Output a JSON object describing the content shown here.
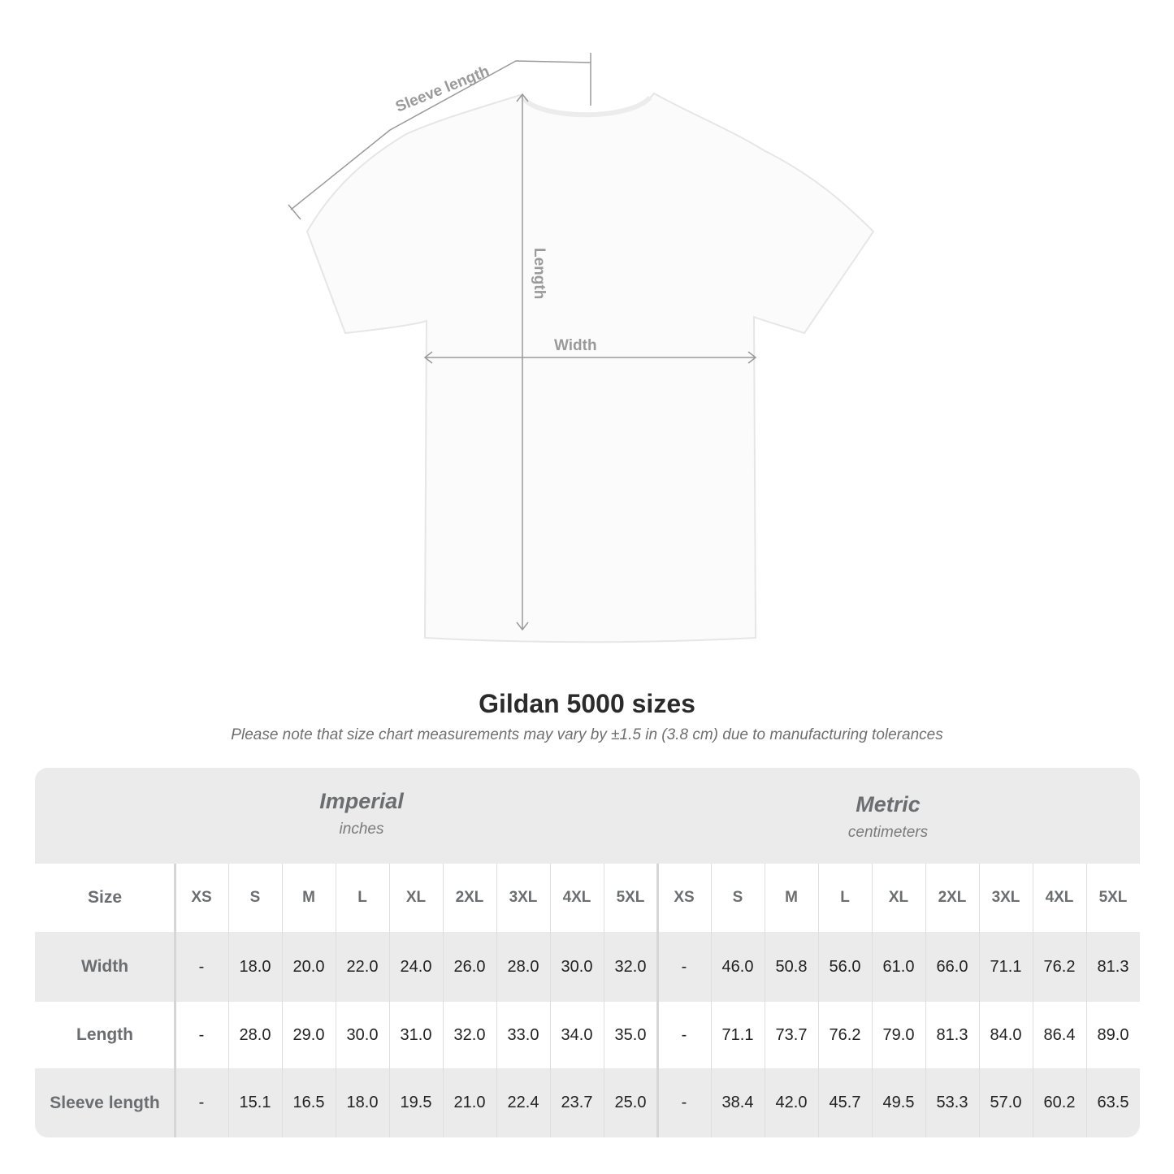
{
  "diagram": {
    "labels": {
      "sleeve_length": "Sleeve length",
      "length": "Length",
      "width": "Width"
    },
    "arrow_color": "#9a9a9a"
  },
  "title": "Gildan 5000 sizes",
  "note": "Please note that size chart measurements may vary by ±1.5 in (3.8 cm) due to manufacturing tolerances",
  "table": {
    "imperial": {
      "name": "Imperial",
      "unit": "inches"
    },
    "metric": {
      "name": "Metric",
      "unit": "centimeters"
    },
    "size_label": "Size",
    "sizes": [
      "XS",
      "S",
      "M",
      "L",
      "XL",
      "2XL",
      "3XL",
      "4XL",
      "5XL"
    ],
    "rows": [
      {
        "label": "Width",
        "imperial": [
          "-",
          "18.0",
          "20.0",
          "22.0",
          "24.0",
          "26.0",
          "28.0",
          "30.0",
          "32.0"
        ],
        "metric": [
          "-",
          "46.0",
          "50.8",
          "56.0",
          "61.0",
          "66.0",
          "71.1",
          "76.2",
          "81.3"
        ]
      },
      {
        "label": "Length",
        "imperial": [
          "-",
          "28.0",
          "29.0",
          "30.0",
          "31.0",
          "32.0",
          "33.0",
          "34.0",
          "35.0"
        ],
        "metric": [
          "-",
          "71.1",
          "73.7",
          "76.2",
          "79.0",
          "81.3",
          "84.0",
          "86.4",
          "89.0"
        ]
      },
      {
        "label": "Sleeve length",
        "imperial": [
          "-",
          "15.1",
          "16.5",
          "18.0",
          "19.5",
          "21.0",
          "22.4",
          "23.7",
          "25.0"
        ],
        "metric": [
          "-",
          "38.4",
          "42.0",
          "45.7",
          "49.5",
          "53.3",
          "57.0",
          "60.2",
          "63.5"
        ]
      }
    ]
  }
}
